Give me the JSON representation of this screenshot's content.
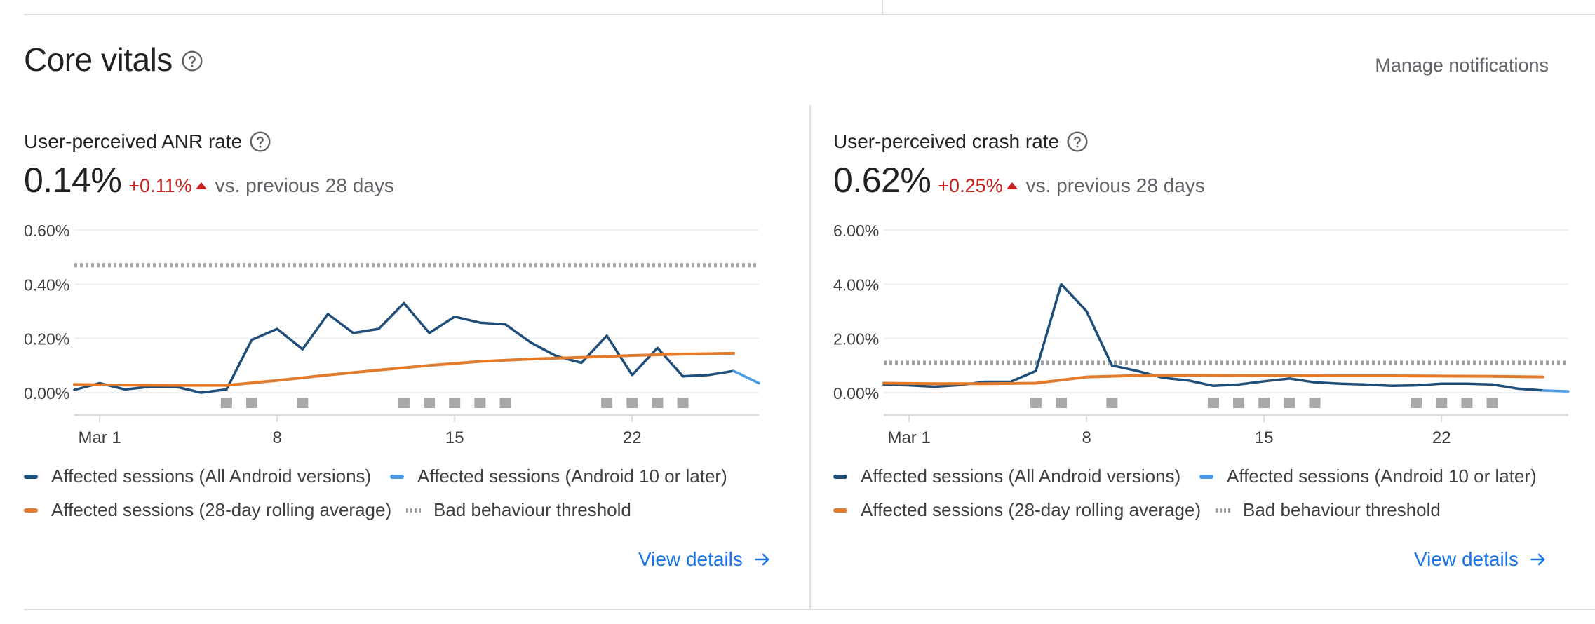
{
  "section": {
    "title": "Core vitals",
    "manage_label": "Manage notifications"
  },
  "colors": {
    "all_versions": "#1f4e79",
    "android10": "#4a9ae8",
    "rolling_avg": "#e37b2c",
    "threshold": "#a0a0a0",
    "delta_red": "#c5221f",
    "link_blue": "#1a73e8"
  },
  "panels": [
    {
      "title": "User-perceived ANR rate",
      "value": "0.14%",
      "delta": "+0.11%",
      "compare": "vs. previous 28 days",
      "view_details": "View details",
      "legend": {
        "all": "Affected sessions (All Android versions)",
        "android10": "Affected sessions (Android 10 or later)",
        "rolling": "Affected sessions (28-day rolling average)",
        "threshold": "Bad behaviour threshold"
      }
    },
    {
      "title": "User-perceived crash rate",
      "value": "0.62%",
      "delta": "+0.25%",
      "compare": "vs. previous 28 days",
      "view_details": "View details",
      "legend": {
        "all": "Affected sessions (All Android versions)",
        "android10": "Affected sessions (Android 10 or later)",
        "rolling": "Affected sessions (28-day rolling average)",
        "threshold": "Bad behaviour threshold"
      }
    }
  ],
  "chart_data": [
    {
      "type": "line",
      "title": "User-perceived ANR rate",
      "y_ticks": [
        "0.60%",
        "0.40%",
        "0.20%",
        "0.00%"
      ],
      "y_tick_values": [
        0.6,
        0.4,
        0.2,
        0.0
      ],
      "ylim": [
        -0.08,
        0.6
      ],
      "xlim": [
        0,
        27
      ],
      "x_ticks": [
        {
          "label": "Mar 1",
          "day": 1
        },
        {
          "label": "8",
          "day": 8
        },
        {
          "label": "15",
          "day": 15
        },
        {
          "label": "22",
          "day": 22
        }
      ],
      "threshold": 0.47,
      "series": [
        {
          "name": "Affected sessions (All Android versions)",
          "key": "all",
          "days": [
            0,
            1,
            2,
            3,
            4,
            5,
            6,
            7,
            8,
            9,
            10,
            11,
            12,
            13,
            14,
            15,
            16,
            17,
            18,
            19,
            20,
            21,
            22,
            23,
            24,
            25,
            26
          ],
          "values": [
            0.01,
            0.035,
            0.012,
            0.022,
            0.022,
            0.0,
            0.012,
            0.195,
            0.235,
            0.16,
            0.29,
            0.22,
            0.235,
            0.33,
            0.22,
            0.28,
            0.258,
            0.252,
            0.185,
            0.135,
            0.11,
            0.21,
            0.065,
            0.165,
            0.06,
            0.065,
            0.08
          ]
        },
        {
          "name": "Affected sessions (Android 10 or later)",
          "key": "android10",
          "days": [
            26,
            27
          ],
          "values": [
            0.08,
            0.035
          ]
        },
        {
          "name": "Affected sessions (28-day rolling average)",
          "key": "rolling",
          "days": [
            0,
            2,
            4,
            6,
            8,
            10,
            12,
            14,
            16,
            18,
            20,
            22,
            24,
            26
          ],
          "values": [
            0.03,
            0.028,
            0.027,
            0.027,
            0.045,
            0.065,
            0.083,
            0.1,
            0.115,
            0.124,
            0.13,
            0.137,
            0.142,
            0.145
          ]
        }
      ],
      "event_markers_days": [
        6,
        7,
        9,
        13,
        14,
        15,
        16,
        17,
        21,
        22,
        23,
        24
      ]
    },
    {
      "type": "line",
      "title": "User-perceived crash rate",
      "y_ticks": [
        "6.00%",
        "4.00%",
        "2.00%",
        "0.00%"
      ],
      "y_tick_values": [
        6.0,
        4.0,
        2.0,
        0.0
      ],
      "ylim": [
        -0.8,
        6.0
      ],
      "xlim": [
        0,
        27
      ],
      "x_ticks": [
        {
          "label": "Mar 1",
          "day": 1
        },
        {
          "label": "8",
          "day": 8
        },
        {
          "label": "15",
          "day": 15
        },
        {
          "label": "22",
          "day": 22
        }
      ],
      "threshold": 1.1,
      "series": [
        {
          "name": "Affected sessions (All Android versions)",
          "key": "all",
          "days": [
            0,
            1,
            2,
            3,
            4,
            5,
            6,
            7,
            8,
            9,
            10,
            11,
            12,
            13,
            14,
            15,
            16,
            17,
            18,
            19,
            20,
            21,
            22,
            23,
            24,
            25,
            26
          ],
          "values": [
            0.3,
            0.27,
            0.22,
            0.28,
            0.4,
            0.4,
            0.8,
            4.0,
            3.0,
            1.0,
            0.8,
            0.55,
            0.45,
            0.25,
            0.3,
            0.42,
            0.52,
            0.38,
            0.33,
            0.3,
            0.25,
            0.27,
            0.33,
            0.33,
            0.3,
            0.15,
            0.08
          ]
        },
        {
          "name": "Affected sessions (Android 10 or later)",
          "key": "android10",
          "days": [
            26,
            27
          ],
          "values": [
            0.08,
            0.05
          ]
        },
        {
          "name": "Affected sessions (28-day rolling average)",
          "key": "rolling",
          "days": [
            0,
            2,
            4,
            6,
            8,
            10,
            12,
            14,
            16,
            18,
            20,
            22,
            24,
            26
          ],
          "values": [
            0.35,
            0.33,
            0.33,
            0.35,
            0.58,
            0.63,
            0.64,
            0.63,
            0.63,
            0.62,
            0.62,
            0.61,
            0.6,
            0.58
          ]
        }
      ],
      "event_markers_days": [
        6,
        7,
        9,
        13,
        14,
        15,
        16,
        17,
        21,
        22,
        23,
        24
      ]
    }
  ]
}
